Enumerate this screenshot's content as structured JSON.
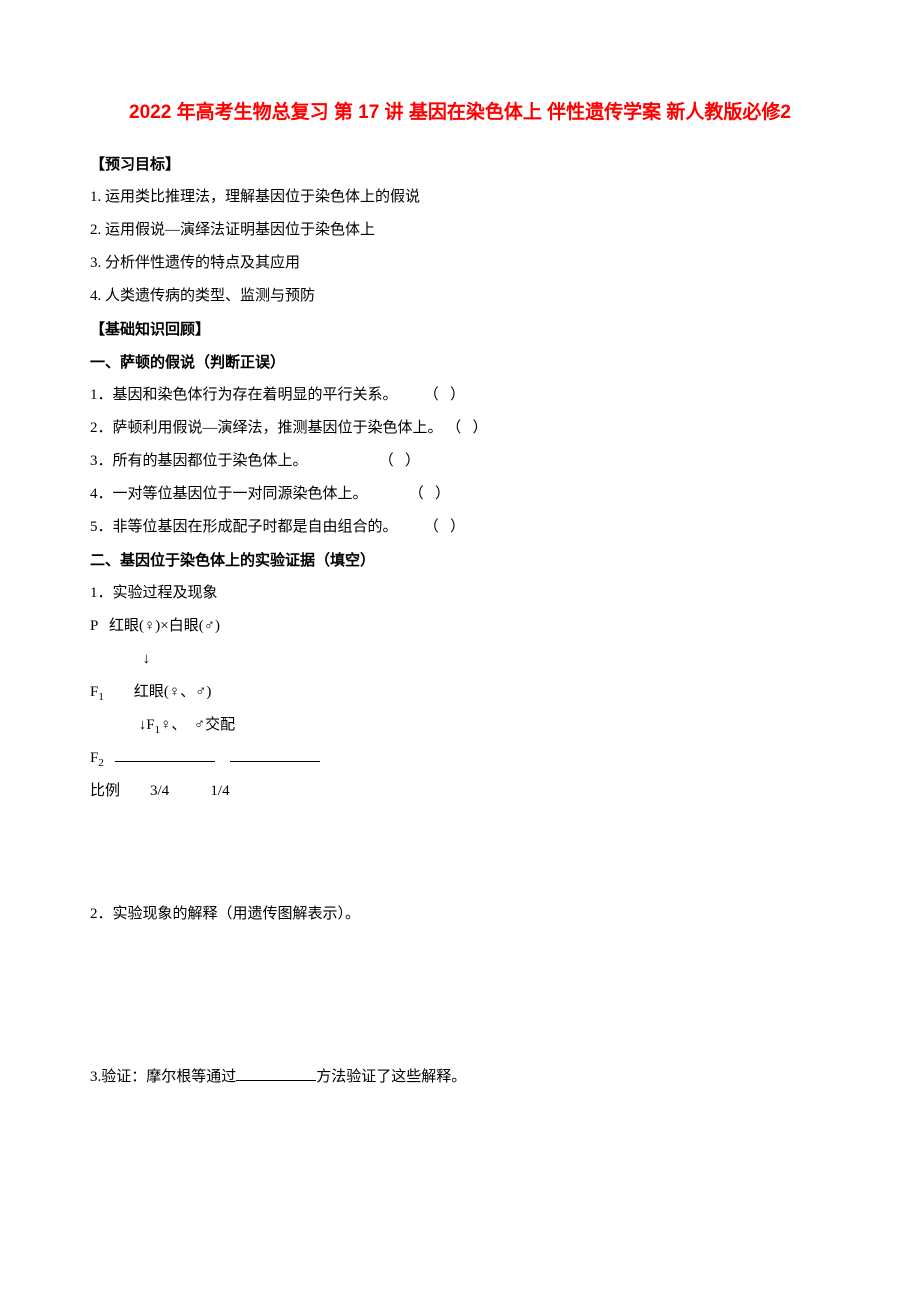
{
  "colors": {
    "title": "#ff0000",
    "body_text": "#000000",
    "background": "#ffffff"
  },
  "fonts": {
    "title_family": "SimHei",
    "body_family": "SimSun",
    "title_size_pt": 14,
    "body_size_pt": 11
  },
  "title": "2022 年高考生物总复习 第 17 讲 基因在染色体上 伴性遗传学案 新人教版必修2",
  "headings": {
    "objectives": "【预习目标】",
    "review": "【基础知识回顾】",
    "section1": "一、萨顿的假说（判断正误）",
    "section2": "二、基因位于染色体上的实验证据（填空）"
  },
  "objectives": [
    "1.  运用类比推理法，理解基因位于染色体上的假说",
    "2.  运用假说—演绎法证明基因位于染色体上",
    "3.  分析伴性遗传的特点及其应用",
    "4.  人类遗传病的类型、监测与预防"
  ],
  "judgments": [
    "1．基因和染色体行为存在着明显的平行关系。       （   ）",
    "2．萨顿利用假说—演绎法，推测基因位于染色体上。 （   ）",
    "3．所有的基因都位于染色体上。                   （   ）",
    "4．一对等位基因位于一对同源染色体上。           （   ）",
    "5．非等位基因在形成配子时都是自由组合的。       （   ）"
  ],
  "exp": {
    "sub1": "1．实验过程及现象",
    "p_line": "P   红眼(♀)×白眼(♂)",
    "arrow1": "              ↓",
    "f1_line_prefix": "F",
    "f1_line_rest": "        红眼(♀、♂)",
    "mate_prefix": "             ↓F",
    "mate_suffix": "♀、  ♂交配",
    "f2_prefix": "F",
    "f2_rest": "   ",
    "ratio_line": "比例        3/4           1/4",
    "sub2": "2．实验现象的解释（用遗传图解表示）。",
    "sub3_prefix": "3.验证：摩尔根等通过",
    "sub3_suffix": "方法验证了这些解释。"
  }
}
